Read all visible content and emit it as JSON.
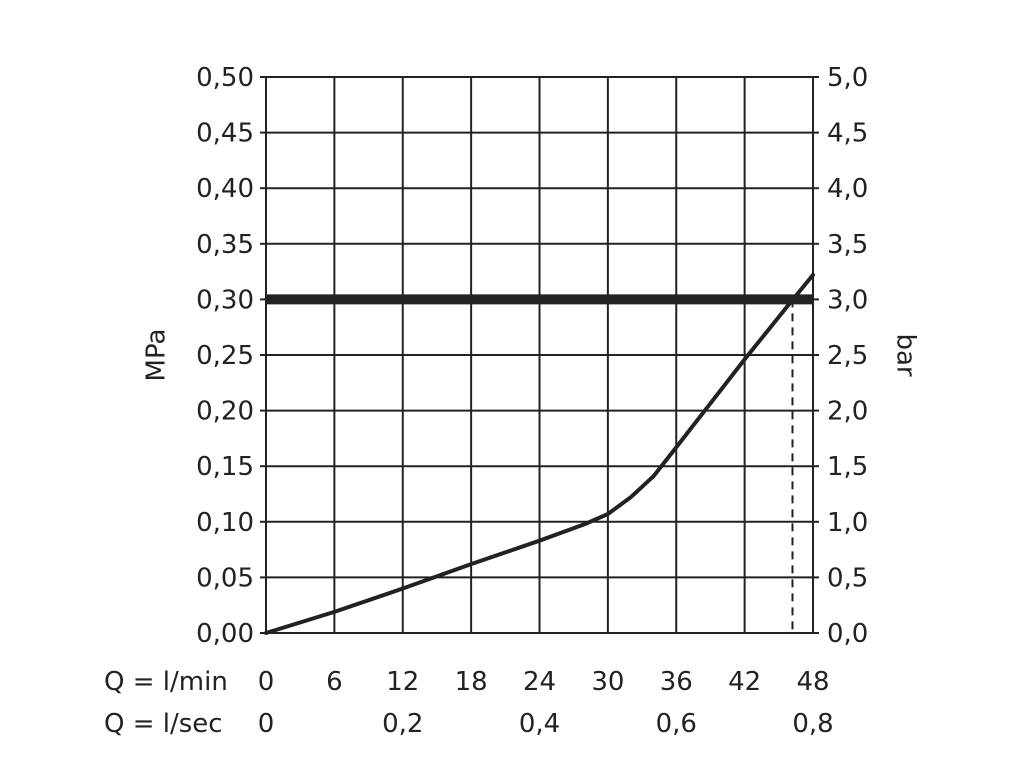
{
  "chart_data": {
    "type": "line",
    "x_unit_row_labels": [
      "Q = l/min",
      "Q = l/sec"
    ],
    "x_ticks_lmin": [
      "0",
      "6",
      "12",
      "18",
      "24",
      "30",
      "36",
      "42",
      "48"
    ],
    "x_ticks_lsec": [
      "0",
      "0,2",
      "0,4",
      "0,6",
      "0,8"
    ],
    "y_left_label": "MPa",
    "y_right_label": "bar",
    "y_left_ticks": [
      "0,00",
      "0,05",
      "0,10",
      "0,15",
      "0,20",
      "0,25",
      "0,30",
      "0,35",
      "0,40",
      "0,45",
      "0,50"
    ],
    "y_right_ticks": [
      "0,0",
      "0,5",
      "1,0",
      "1,5",
      "2,0",
      "2,5",
      "3,0",
      "3,5",
      "4,0",
      "4,5",
      "5,0"
    ],
    "xlim": [
      0,
      48
    ],
    "ylim": [
      0,
      0.5
    ],
    "grid": true,
    "series": [
      {
        "x": [
          0,
          6,
          12,
          18,
          24,
          28,
          30,
          32,
          34,
          36,
          42,
          46,
          48
        ],
        "y": [
          0.0,
          0.019,
          0.04,
          0.062,
          0.083,
          0.098,
          0.107,
          0.122,
          0.141,
          0.167,
          0.246,
          0.297,
          0.322
        ],
        "color": "#222222"
      }
    ],
    "reference_line": {
      "y": 0.3,
      "color": "#222222"
    },
    "marker_line": {
      "x": 46.2,
      "style": "dashed"
    }
  }
}
